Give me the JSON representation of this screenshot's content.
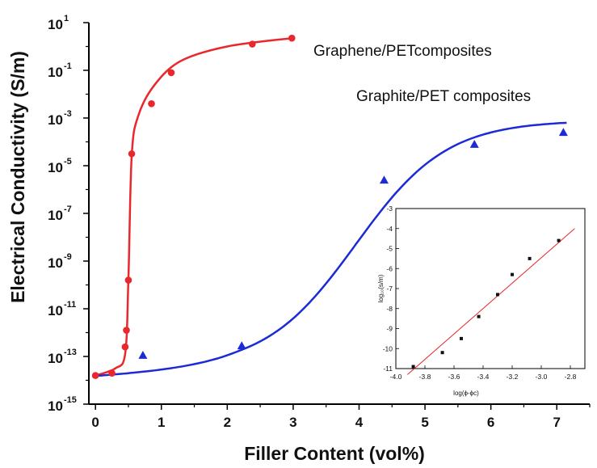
{
  "chart_data": [
    {
      "type": "scatter",
      "xlabel": "Filler Content (vol%)",
      "ylabel": "Electrical Conductivity (S/m)",
      "xlim": [
        -0.1,
        7.5
      ],
      "ylim_log10": [
        -15,
        1
      ],
      "y_scale": "log",
      "x_ticks": [
        "0",
        "1",
        "2",
        "3",
        "4",
        "5",
        "6",
        "7"
      ],
      "y_ticks": [
        {
          "base": "10",
          "exp": "1"
        },
        {
          "base": "10",
          "exp": "-1"
        },
        {
          "base": "10",
          "exp": "-3"
        },
        {
          "base": "10",
          "exp": "-5"
        },
        {
          "base": "10",
          "exp": "-7"
        },
        {
          "base": "10",
          "exp": "-9"
        },
        {
          "base": "10",
          "exp": "-11"
        },
        {
          "base": "10",
          "exp": "-13"
        },
        {
          "base": "10",
          "exp": "-15"
        }
      ],
      "grid": false,
      "series": [
        {
          "name": "Graphene/PETcomposites",
          "color": "#e8282c",
          "marker": "circle",
          "points": [
            {
              "x": 0.0,
              "log10_y": -13.8
            },
            {
              "x": 0.25,
              "log10_y": -13.7
            },
            {
              "x": 0.45,
              "log10_y": -12.6
            },
            {
              "x": 0.47,
              "log10_y": -11.9
            },
            {
              "x": 0.5,
              "log10_y": -9.8
            },
            {
              "x": 0.55,
              "log10_y": -4.5
            },
            {
              "x": 0.85,
              "log10_y": -2.4
            },
            {
              "x": 1.15,
              "log10_y": -1.1
            },
            {
              "x": 2.38,
              "log10_y": 0.1
            },
            {
              "x": 2.98,
              "log10_y": 0.35
            }
          ]
        },
        {
          "name": "Graphite/PET composites",
          "color": "#1c2bd6",
          "marker": "triangle",
          "points": [
            {
              "x": 0.72,
              "log10_y": -12.95
            },
            {
              "x": 2.22,
              "log10_y": -12.55
            },
            {
              "x": 4.38,
              "log10_y": -5.6
            },
            {
              "x": 5.75,
              "log10_y": -4.1
            },
            {
              "x": 7.1,
              "log10_y": -3.6
            }
          ]
        }
      ]
    },
    {
      "type": "scatter",
      "xlabel": "log(ϕ-ϕc)",
      "ylabel": "log₁₀(s/m)",
      "xlim": [
        -4.0,
        -2.7
      ],
      "ylim": [
        -11,
        -3
      ],
      "x_ticks": [
        "-4.0",
        "-3.8",
        "-3.6",
        "-3.4",
        "-3.2",
        "-3.0",
        "-2.8"
      ],
      "y_ticks": [
        "-3",
        "-4",
        "-5",
        "-6",
        "-7",
        "-8",
        "-9",
        "-10",
        "-11"
      ],
      "points": [
        {
          "x": -3.88,
          "y": -10.9
        },
        {
          "x": -3.68,
          "y": -10.2
        },
        {
          "x": -3.55,
          "y": -9.5
        },
        {
          "x": -3.43,
          "y": -8.4
        },
        {
          "x": -3.3,
          "y": -7.3
        },
        {
          "x": -3.2,
          "y": -6.3
        },
        {
          "x": -3.08,
          "y": -5.5
        },
        {
          "x": -2.88,
          "y": -4.6
        }
      ],
      "fit_line": {
        "x": [
          -3.92,
          -2.77
        ],
        "y": [
          -11.3,
          -4.0
        ],
        "color": "#e8282c"
      }
    }
  ]
}
